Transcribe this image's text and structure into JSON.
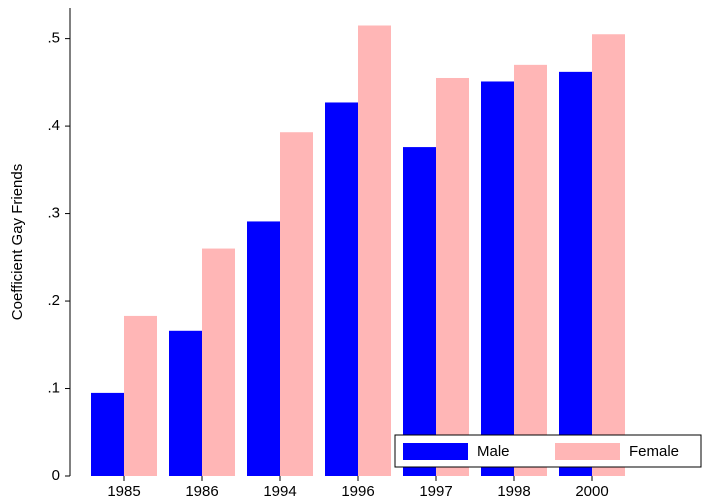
{
  "chart_data": {
    "type": "bar",
    "y_label": "Coefficient Gay Friends",
    "categories": [
      "1985",
      "1986",
      "1994",
      "1996",
      "1997",
      "1998",
      "2000"
    ],
    "series": [
      {
        "name": "Male",
        "color": "#0000ff",
        "values": [
          0.095,
          0.166,
          0.291,
          0.427,
          0.376,
          0.451,
          0.462
        ]
      },
      {
        "name": "Female",
        "color": "#ffb6b6",
        "values": [
          0.183,
          0.26,
          0.393,
          0.515,
          0.455,
          0.47,
          0.505
        ]
      }
    ],
    "ylim": [
      0,
      0.535
    ],
    "yticks": [
      0,
      {
        "value": 0.1,
        "label": ".1"
      },
      {
        "value": 0.2,
        "label": ".2"
      },
      {
        "value": 0.3,
        "label": ".3"
      },
      {
        "value": 0.4,
        "label": ".4"
      },
      {
        "value": 0.5,
        "label": ".5"
      }
    ],
    "legend": "bottom-right"
  }
}
